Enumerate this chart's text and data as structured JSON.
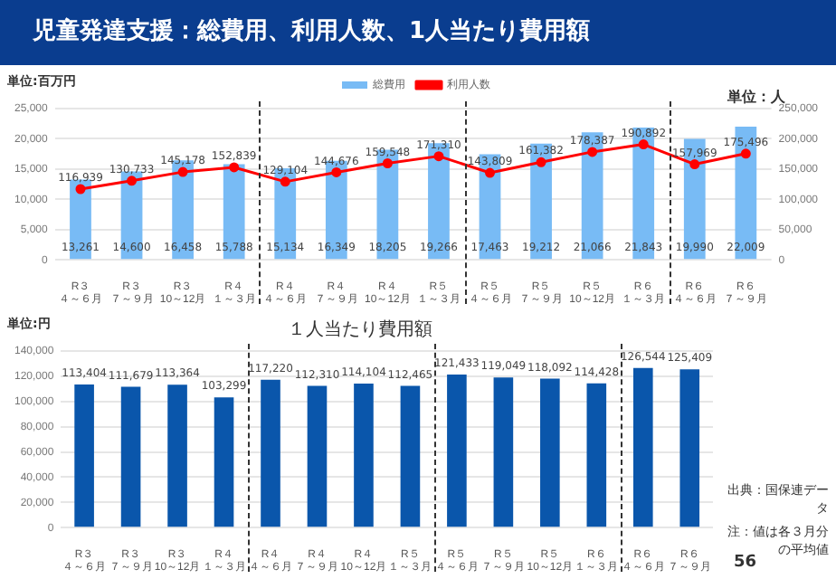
{
  "chart_data": [
    {
      "type": "bar",
      "title": "児童発達支援：総費用、利用人数、1人当たり費用額",
      "ylabel": "単位:百万円",
      "y2label": "単位：人",
      "categories": [
        "R３４～６月",
        "R３７～９月",
        "R３10～12月",
        "R４１～３月",
        "R４４～６月",
        "R４７～９月",
        "R４10～12月",
        "R５１～３月",
        "R５４～６月",
        "R５７～９月",
        "R５10～12月",
        "R６１～３月",
        "R６４～６月",
        "R６７～９月"
      ],
      "series": [
        {
          "name": "総費用",
          "type": "bar",
          "color": "#78bbf5",
          "values": [
            13261,
            14600,
            16458,
            15788,
            15134,
            16349,
            18205,
            19266,
            17463,
            19212,
            21066,
            21843,
            19990,
            22009
          ],
          "value_labels": [
            "13,261",
            "14,600",
            "16,458",
            "15,788",
            "15,134",
            "16,349",
            "18,205",
            "19,266",
            "17,463",
            "19,212",
            "21,066",
            "21,843",
            "19,990",
            "22,009"
          ]
        },
        {
          "name": "利用人数",
          "type": "line",
          "axis": "y2",
          "color": "#ff0000",
          "values": [
            116939,
            130733,
            145178,
            152839,
            129104,
            144676,
            159548,
            171310,
            143809,
            161382,
            178387,
            190892,
            157969,
            175496
          ],
          "value_labels": [
            "116,939",
            "130,733",
            "145,178",
            "152,839",
            "129,104",
            "144,676",
            "159,548",
            "171,310",
            "143,809",
            "161,382",
            "178,387",
            "190,892",
            "157,969",
            "175,496"
          ]
        }
      ],
      "ylim": [
        0,
        25000
      ],
      "yticks": [
        0,
        {
          "value": 5000,
          "label": "5,000"
        },
        {
          "value": 10000,
          "label": "10,000"
        },
        {
          "value": 15000,
          "label": "15,000"
        },
        {
          "value": 20000,
          "label": "20,000"
        },
        {
          "value": 25000,
          "label": "25,000"
        }
      ],
      "y2lim": [
        0,
        250000
      ],
      "y2ticks": [
        0,
        {
          "value": 50000,
          "label": "50,000"
        },
        {
          "value": 100000,
          "label": "100,000"
        },
        {
          "value": 150000,
          "label": "150,000"
        },
        {
          "value": 200000,
          "label": "200,000"
        },
        {
          "value": 250000,
          "label": "250,000"
        }
      ],
      "grid": "y",
      "legend": "top",
      "marker": "circle",
      "line_style": "solid"
    },
    {
      "type": "bar",
      "title": "１人当たり費用額",
      "ylabel": "単位:円",
      "categories": [
        "R３４～６月",
        "R３７～９月",
        "R３10～12月",
        "R４１～３月",
        "R４４～６月",
        "R４７～９月",
        "R４10～12月",
        "R５１～３月",
        "R５４～６月",
        "R５７～９月",
        "R５10～12月",
        "R６１～３月",
        "R６４～６月",
        "R６７～９月"
      ],
      "values": [
        113404,
        111679,
        113364,
        103299,
        117220,
        112310,
        114104,
        112465,
        121433,
        119049,
        118092,
        114428,
        126544,
        125409
      ],
      "value_labels": [
        "113,404",
        "111,679",
        "113,364",
        "103,299",
        "117,220",
        "112,310",
        "114,104",
        "112,465",
        "121,433",
        "119,049",
        "118,092",
        "114,428",
        "126,544",
        "125,409"
      ],
      "color": "#0a56ab",
      "ylim": [
        0,
        140000
      ],
      "yticks": [
        0,
        {
          "value": 20000,
          "label": "20,000"
        },
        {
          "value": 40000,
          "label": "40,000"
        },
        {
          "value": 60000,
          "label": "60,000"
        },
        {
          "value": 80000,
          "label": "80,000"
        },
        {
          "value": 100000,
          "label": "100,000"
        },
        {
          "value": 120000,
          "label": "120,000"
        },
        {
          "value": 140000,
          "label": "140,000"
        }
      ],
      "grid": "y",
      "annotations": [
        "出典：国保連データ",
        "注：値は各３月分の平均値",
        "56"
      ]
    }
  ]
}
